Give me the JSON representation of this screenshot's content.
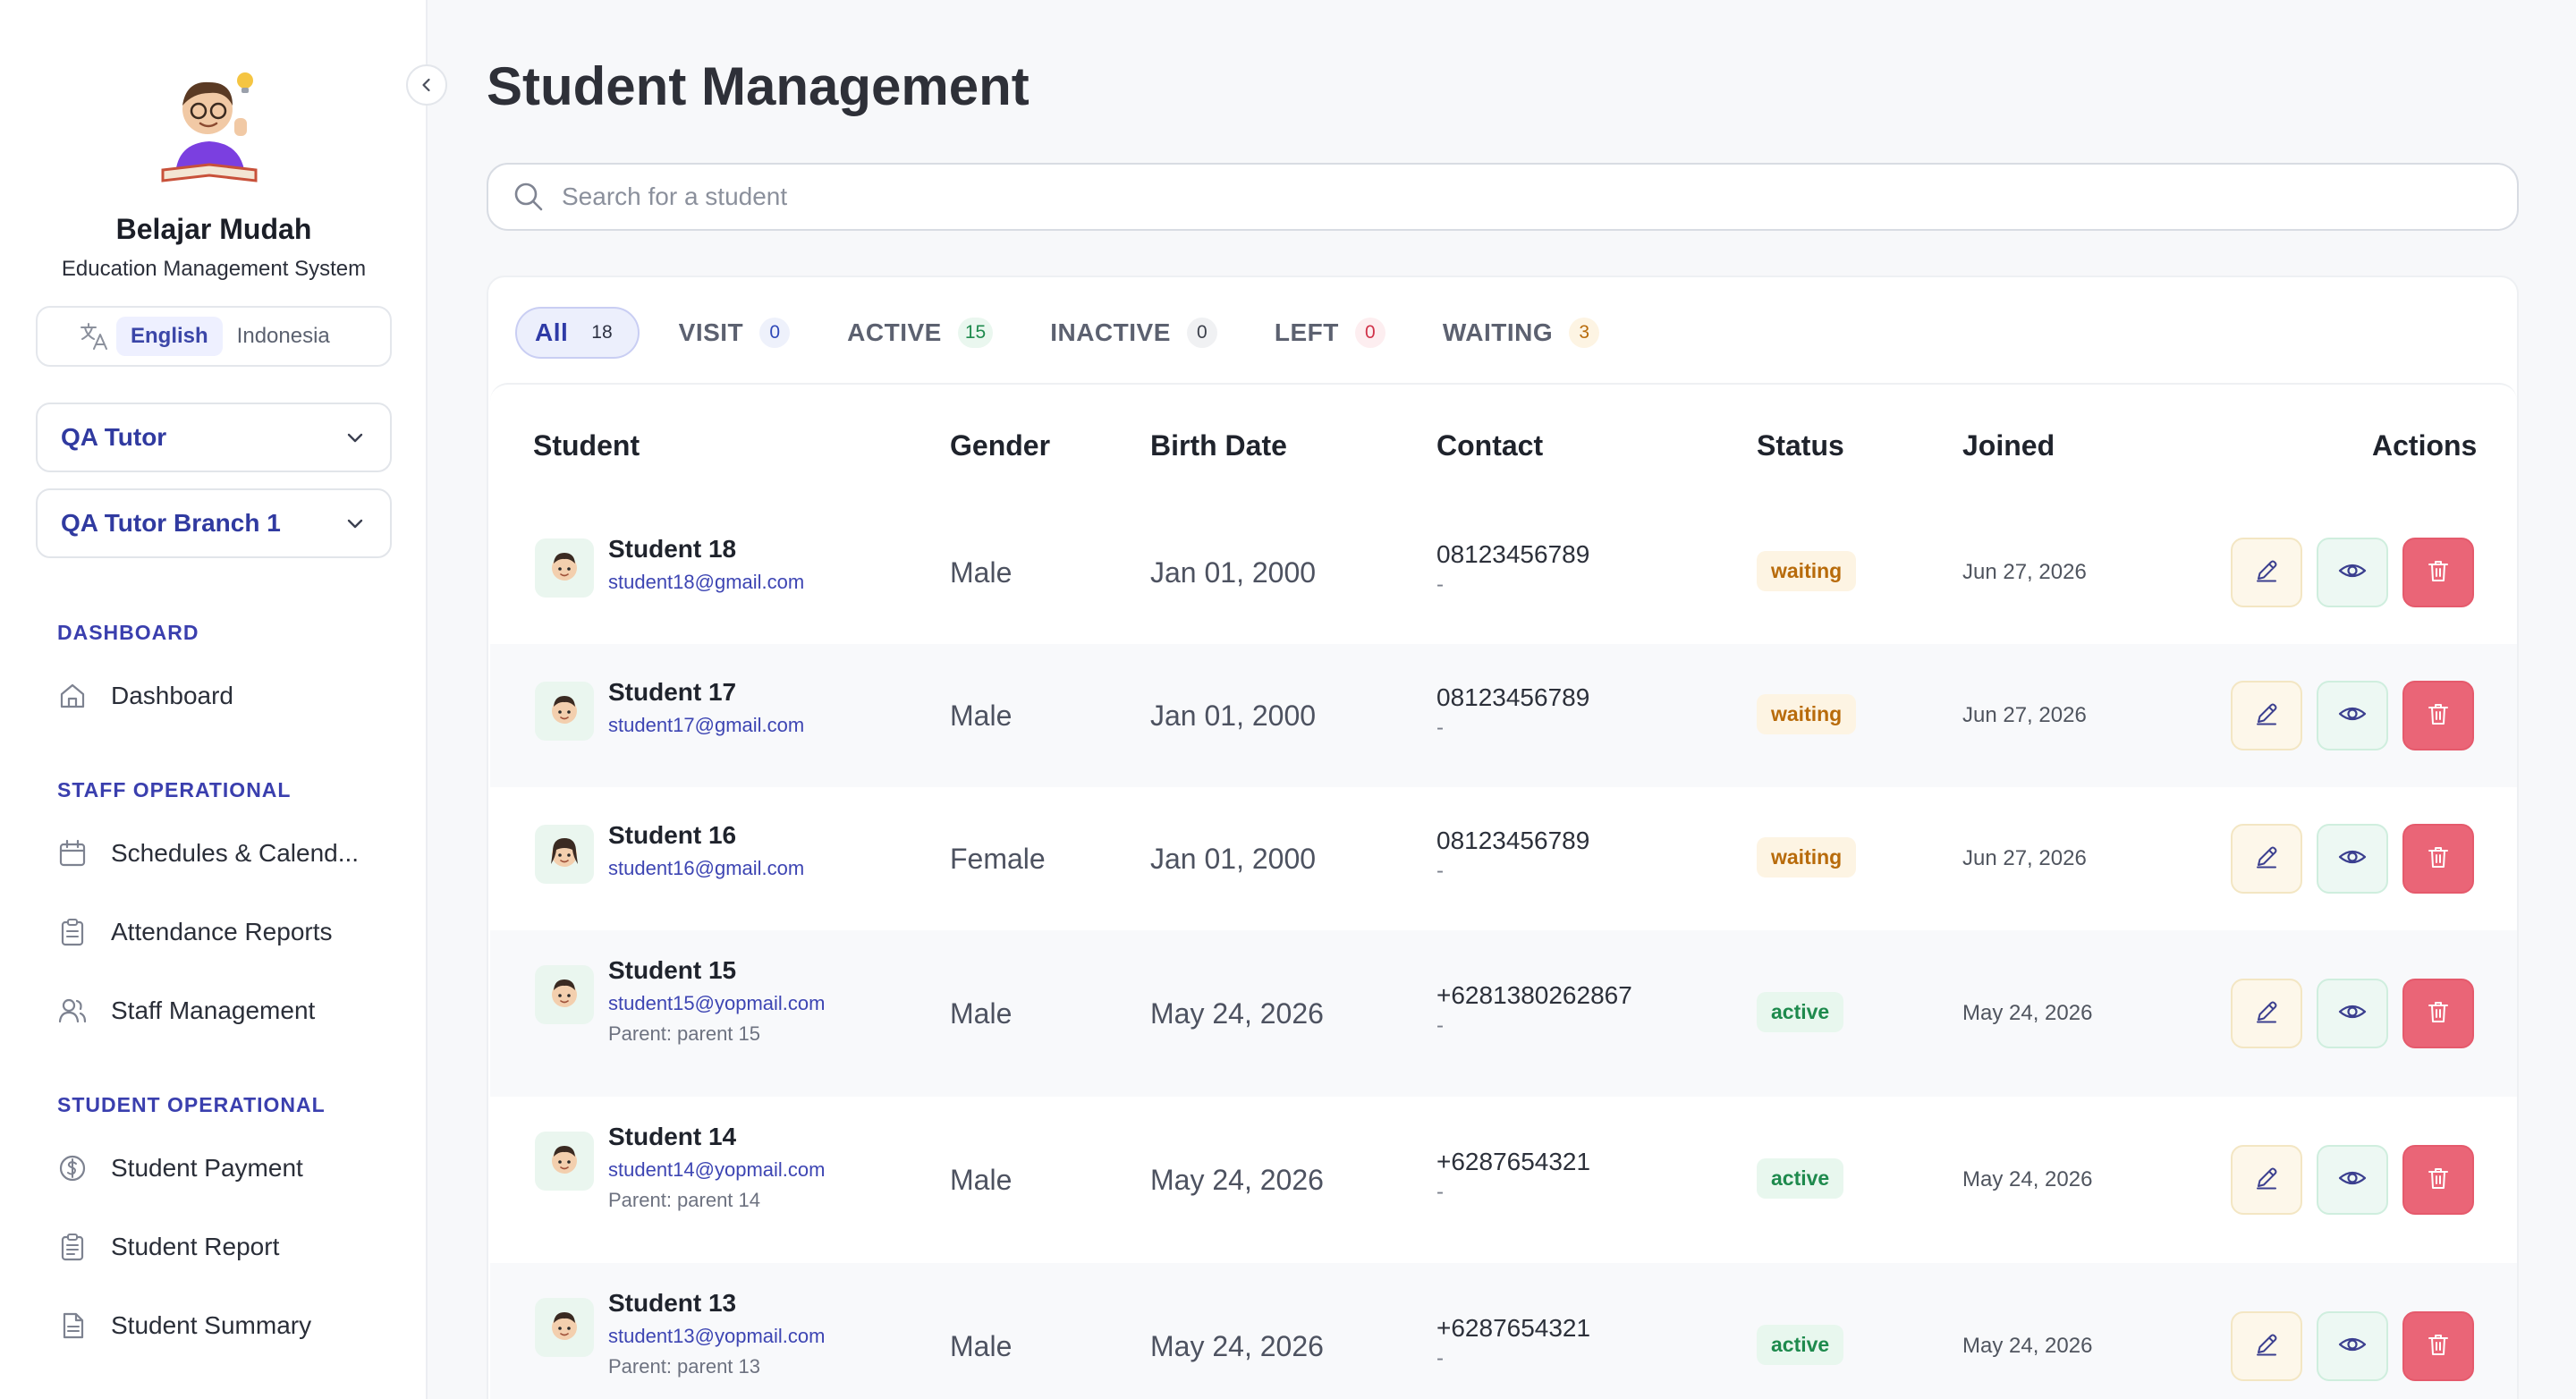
{
  "sidebar": {
    "brand_name": "Belajar Mudah",
    "brand_sub": "Education Management System",
    "lang": {
      "english": "English",
      "indonesia": "Indonesia",
      "active": "english"
    },
    "tutor_select": "QA Tutor",
    "branch_select": "QA Tutor Branch 1",
    "sections": {
      "dashboard": "DASHBOARD",
      "staff": "STAFF OPERATIONAL",
      "student": "STUDENT OPERATIONAL"
    },
    "items": {
      "dashboard": "Dashboard",
      "schedules": "Schedules & Calend...",
      "attendance": "Attendance Reports",
      "staff_mgmt": "Staff Management",
      "payment": "Student Payment",
      "report": "Student Report",
      "summary": "Student Summary"
    }
  },
  "main": {
    "title": "Student Management",
    "search_placeholder": "Search for a student",
    "tabs": [
      {
        "label": "All",
        "count": "18",
        "active": true,
        "count_color": "#2d3142",
        "count_bg": "transparent"
      },
      {
        "label": "VISIT",
        "count": "0",
        "count_color": "#2f49b8",
        "count_bg": "#eef1fb"
      },
      {
        "label": "ACTIVE",
        "count": "15",
        "count_color": "#1e8a4d",
        "count_bg": "#eaf7ef"
      },
      {
        "label": "INACTIVE",
        "count": "0",
        "count_color": "#3b3f4a",
        "count_bg": "#f0f1f3"
      },
      {
        "label": "LEFT",
        "count": "0",
        "count_color": "#d0334a",
        "count_bg": "#fdeef0"
      },
      {
        "label": "WAITING",
        "count": "3",
        "count_color": "#b86b0b",
        "count_bg": "#fdf4e3"
      }
    ],
    "columns": {
      "student": "Student",
      "gender": "Gender",
      "birth": "Birth Date",
      "contact": "Contact",
      "status": "Status",
      "joined": "Joined",
      "actions": "Actions"
    },
    "rows": [
      {
        "name": "Student 18",
        "email": "student18@gmail.com",
        "parent": "",
        "gender": "Male",
        "birth": "Jan 01, 2000",
        "phone": "08123456789",
        "phone_sub": "-",
        "status": "waiting",
        "joined": "Jun 27, 2026",
        "avatar": "boy"
      },
      {
        "name": "Student 17",
        "email": "student17@gmail.com",
        "parent": "",
        "gender": "Male",
        "birth": "Jan 01, 2000",
        "phone": "08123456789",
        "phone_sub": "-",
        "status": "waiting",
        "joined": "Jun 27, 2026",
        "avatar": "boy"
      },
      {
        "name": "Student 16",
        "email": "student16@gmail.com",
        "parent": "",
        "gender": "Female",
        "birth": "Jan 01, 2000",
        "phone": "08123456789",
        "phone_sub": "-",
        "status": "waiting",
        "joined": "Jun 27, 2026",
        "avatar": "girl"
      },
      {
        "name": "Student 15",
        "email": "student15@yopmail.com",
        "parent": "Parent: parent 15",
        "gender": "Male",
        "birth": "May 24, 2026",
        "phone": "+6281380262867",
        "phone_sub": "-",
        "status": "active",
        "joined": "May 24, 2026",
        "avatar": "boy"
      },
      {
        "name": "Student 14",
        "email": "student14@yopmail.com",
        "parent": "Parent: parent 14",
        "gender": "Male",
        "birth": "May 24, 2026",
        "phone": "+6287654321",
        "phone_sub": "-",
        "status": "active",
        "joined": "May 24, 2026",
        "avatar": "boy"
      },
      {
        "name": "Student 13",
        "email": "student13@yopmail.com",
        "parent": "Parent: parent 13",
        "gender": "Male",
        "birth": "May 24, 2026",
        "phone": "+6287654321",
        "phone_sub": "-",
        "status": "active",
        "joined": "May 24, 2026",
        "avatar": "boy"
      }
    ]
  },
  "icons": {
    "collapse": "chevron-left-icon",
    "translate": "translate-icon",
    "dropdown": "chevron-down-icon",
    "search": "search-icon",
    "edit": "pencil-icon",
    "view": "eye-icon",
    "delete": "trash-icon"
  }
}
